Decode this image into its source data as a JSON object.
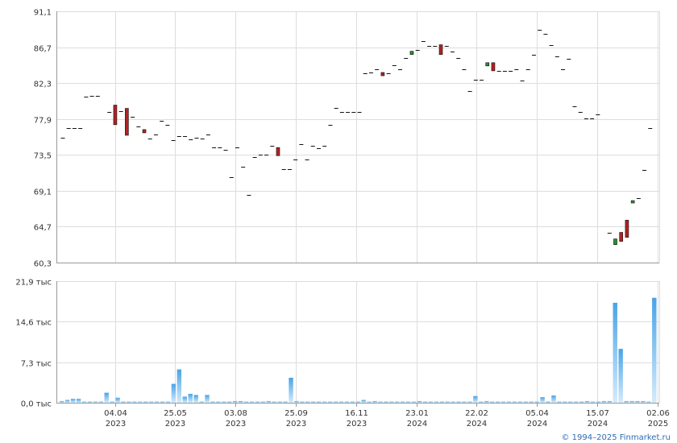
{
  "credit": "© 1994–2025 Finmarket.ru",
  "chart_data": [
    {
      "type": "candlestick",
      "y_ticks": [
        "91,1",
        "86,7",
        "82,3",
        "77,9",
        "73,5",
        "69,1",
        "64,7",
        "60,3"
      ],
      "y_tick_values": [
        91.1,
        86.7,
        82.3,
        77.9,
        73.5,
        69.1,
        64.7,
        60.3
      ],
      "ylim": [
        60.3,
        91.1
      ],
      "grid": true,
      "candles": [
        {
          "i": 0,
          "o": 75.6,
          "c": 75.6
        },
        {
          "i": 1,
          "o": 76.8,
          "c": 76.8
        },
        {
          "i": 2,
          "o": 76.8,
          "c": 76.8
        },
        {
          "i": 3,
          "o": 76.8,
          "c": 76.8
        },
        {
          "i": 4,
          "o": 80.6,
          "c": 80.6
        },
        {
          "i": 5,
          "o": 80.7,
          "c": 80.7
        },
        {
          "i": 6,
          "o": 80.7,
          "c": 80.7
        },
        {
          "i": 8,
          "o": 78.8,
          "c": 78.8
        },
        {
          "i": 9,
          "o": 79.6,
          "c": 77.2
        },
        {
          "i": 10,
          "o": 78.9,
          "c": 78.9
        },
        {
          "i": 11,
          "o": 79.2,
          "c": 75.9
        },
        {
          "i": 12,
          "o": 78.2,
          "c": 78.2
        },
        {
          "i": 13,
          "o": 77.0,
          "c": 77.0
        },
        {
          "i": 14,
          "o": 76.6,
          "c": 76.2
        },
        {
          "i": 15,
          "o": 75.5,
          "c": 75.5
        },
        {
          "i": 16,
          "o": 76.0,
          "c": 76.0
        },
        {
          "i": 17,
          "o": 77.7,
          "c": 77.7
        },
        {
          "i": 18,
          "o": 77.2,
          "c": 77.2
        },
        {
          "i": 19,
          "o": 75.3,
          "c": 75.3
        },
        {
          "i": 20,
          "o": 75.8,
          "c": 75.8
        },
        {
          "i": 21,
          "o": 75.8,
          "c": 75.8
        },
        {
          "i": 22,
          "o": 75.4,
          "c": 75.4
        },
        {
          "i": 23,
          "o": 75.6,
          "c": 75.6
        },
        {
          "i": 24,
          "o": 75.5,
          "c": 75.5
        },
        {
          "i": 25,
          "o": 76.0,
          "c": 76.0
        },
        {
          "i": 26,
          "o": 74.4,
          "c": 74.4
        },
        {
          "i": 27,
          "o": 74.4,
          "c": 74.4
        },
        {
          "i": 28,
          "o": 74.1,
          "c": 74.1
        },
        {
          "i": 29,
          "o": 70.8,
          "c": 70.8
        },
        {
          "i": 30,
          "o": 74.4,
          "c": 74.4
        },
        {
          "i": 31,
          "o": 72.0,
          "c": 72.0
        },
        {
          "i": 32,
          "o": 68.6,
          "c": 68.6
        },
        {
          "i": 33,
          "o": 73.2,
          "c": 73.2
        },
        {
          "i": 34,
          "o": 73.5,
          "c": 73.5
        },
        {
          "i": 35,
          "o": 73.5,
          "c": 73.5
        },
        {
          "i": 36,
          "o": 74.6,
          "c": 74.6
        },
        {
          "i": 37,
          "o": 74.4,
          "c": 73.4
        },
        {
          "i": 38,
          "o": 71.8,
          "c": 71.8
        },
        {
          "i": 39,
          "o": 71.8,
          "c": 71.8
        },
        {
          "i": 40,
          "o": 72.9,
          "c": 72.9
        },
        {
          "i": 41,
          "o": 74.8,
          "c": 74.8
        },
        {
          "i": 42,
          "o": 72.9,
          "c": 72.9
        },
        {
          "i": 43,
          "o": 74.6,
          "c": 74.6
        },
        {
          "i": 44,
          "o": 74.3,
          "c": 74.3
        },
        {
          "i": 45,
          "o": 74.6,
          "c": 74.6
        },
        {
          "i": 46,
          "o": 77.2,
          "c": 77.2
        },
        {
          "i": 47,
          "o": 79.3,
          "c": 79.3
        },
        {
          "i": 48,
          "o": 78.8,
          "c": 78.8
        },
        {
          "i": 49,
          "o": 78.8,
          "c": 78.8
        },
        {
          "i": 50,
          "o": 78.8,
          "c": 78.8
        },
        {
          "i": 51,
          "o": 78.8,
          "c": 78.8
        },
        {
          "i": 52,
          "o": 83.5,
          "c": 83.5
        },
        {
          "i": 53,
          "o": 83.6,
          "c": 83.6
        },
        {
          "i": 54,
          "o": 84.0,
          "c": 84.0
        },
        {
          "i": 55,
          "o": 83.6,
          "c": 83.2
        },
        {
          "i": 56,
          "o": 83.5,
          "c": 83.5
        },
        {
          "i": 57,
          "o": 84.5,
          "c": 84.5
        },
        {
          "i": 58,
          "o": 84.0,
          "c": 84.0
        },
        {
          "i": 59,
          "o": 85.4,
          "c": 85.4
        },
        {
          "i": 60,
          "o": 85.8,
          "c": 86.2
        },
        {
          "i": 61,
          "o": 86.4,
          "c": 86.4
        },
        {
          "i": 62,
          "o": 87.4,
          "c": 87.4
        },
        {
          "i": 63,
          "o": 86.9,
          "c": 86.9
        },
        {
          "i": 64,
          "o": 86.9,
          "c": 86.9
        },
        {
          "i": 65,
          "o": 87.0,
          "c": 85.8
        },
        {
          "i": 66,
          "o": 86.9,
          "c": 86.9
        },
        {
          "i": 67,
          "o": 86.2,
          "c": 86.2
        },
        {
          "i": 68,
          "o": 85.4,
          "c": 85.4
        },
        {
          "i": 69,
          "o": 84.0,
          "c": 84.0
        },
        {
          "i": 70,
          "o": 81.3,
          "c": 81.3
        },
        {
          "i": 71,
          "o": 82.7,
          "c": 82.7
        },
        {
          "i": 72,
          "o": 82.7,
          "c": 82.7
        },
        {
          "i": 73,
          "o": 84.4,
          "c": 84.8
        },
        {
          "i": 74,
          "o": 84.8,
          "c": 83.8
        },
        {
          "i": 75,
          "o": 83.8,
          "c": 83.8
        },
        {
          "i": 76,
          "o": 83.8,
          "c": 83.8
        },
        {
          "i": 77,
          "o": 83.8,
          "c": 83.8
        },
        {
          "i": 78,
          "o": 84.0,
          "c": 84.0
        },
        {
          "i": 79,
          "o": 82.6,
          "c": 82.6
        },
        {
          "i": 80,
          "o": 84.0,
          "c": 84.0
        },
        {
          "i": 81,
          "o": 85.8,
          "c": 85.8
        },
        {
          "i": 82,
          "o": 88.8,
          "c": 88.8
        },
        {
          "i": 83,
          "o": 88.3,
          "c": 88.3
        },
        {
          "i": 84,
          "o": 87.0,
          "c": 87.0
        },
        {
          "i": 85,
          "o": 85.6,
          "c": 85.6
        },
        {
          "i": 86,
          "o": 84.0,
          "c": 84.0
        },
        {
          "i": 87,
          "o": 85.3,
          "c": 85.3
        },
        {
          "i": 88,
          "o": 79.5,
          "c": 79.5
        },
        {
          "i": 89,
          "o": 78.8,
          "c": 78.8
        },
        {
          "i": 90,
          "o": 78.0,
          "c": 78.0
        },
        {
          "i": 91,
          "o": 78.0,
          "c": 78.0
        },
        {
          "i": 92,
          "o": 78.5,
          "c": 78.5
        },
        {
          "i": 94,
          "o": 64.0,
          "c": 64.0
        },
        {
          "i": 95,
          "o": 62.5,
          "c": 63.2
        },
        {
          "i": 96,
          "o": 64.0,
          "c": 62.9
        },
        {
          "i": 97,
          "o": 65.5,
          "c": 63.4
        },
        {
          "i": 98,
          "o": 67.6,
          "c": 67.9
        },
        {
          "i": 99,
          "o": 68.2,
          "c": 68.2
        },
        {
          "i": 100,
          "o": 71.7,
          "c": 71.7
        },
        {
          "i": 101,
          "o": 76.8,
          "c": 76.8
        }
      ]
    },
    {
      "type": "bar",
      "y_ticks": [
        "21,9 тыс",
        "14,6 тыс",
        "7,3 тыс",
        "0,0 тыс"
      ],
      "y_tick_values": [
        21.9,
        14.6,
        7.3,
        0.0
      ],
      "ylim": [
        0,
        21.9
      ],
      "grid": true,
      "color": "#5aaee8",
      "values": [
        0.3,
        0.5,
        0.7,
        0.7,
        0.2,
        0.2,
        0.2,
        0.2,
        1.8,
        0.2,
        0.9,
        0.2,
        0.2,
        0.2,
        0.2,
        0.2,
        0.2,
        0.2,
        0.2,
        0.2,
        3.4,
        6.0,
        1.1,
        1.6,
        1.4,
        0.2,
        1.4,
        0.2,
        0.2,
        0.2,
        0.2,
        0.3,
        0.3,
        0.2,
        0.2,
        0.2,
        0.2,
        0.3,
        0.2,
        0.2,
        0.2,
        4.5,
        0.3,
        0.2,
        0.2,
        0.2,
        0.2,
        0.2,
        0.2,
        0.2,
        0.2,
        0.2,
        0.2,
        0.2,
        0.5,
        0.2,
        0.3,
        0.2,
        0.2,
        0.2,
        0.2,
        0.2,
        0.2,
        0.2,
        0.3,
        0.2,
        0.2,
        0.2,
        0.2,
        0.2,
        0.2,
        0.2,
        0.2,
        0.2,
        1.2,
        0.2,
        0.3,
        0.2,
        0.2,
        0.2,
        0.2,
        0.2,
        0.2,
        0.2,
        0.2,
        0.2,
        1.0,
        0.2,
        1.3,
        0.2,
        0.2,
        0.2,
        0.2,
        0.2,
        0.3,
        0.2,
        0.2,
        0.3,
        0.3,
        18.0,
        9.7,
        0.3,
        0.3,
        0.3,
        0.3,
        0.2,
        18.9
      ]
    }
  ],
  "x_axis": {
    "ticks": [
      {
        "date": "04.04",
        "year": "2023",
        "frac": 0.097
      },
      {
        "date": "25.05",
        "year": "2023",
        "frac": 0.197
      },
      {
        "date": "03.08",
        "year": "2023",
        "frac": 0.297
      },
      {
        "date": "25.09",
        "year": "2023",
        "frac": 0.397
      },
      {
        "date": "16.11",
        "year": "2023",
        "frac": 0.497
      },
      {
        "date": "23.01",
        "year": "2024",
        "frac": 0.597
      },
      {
        "date": "22.02",
        "year": "2024",
        "frac": 0.697
      },
      {
        "date": "05.04",
        "year": "2024",
        "frac": 0.797
      },
      {
        "date": "15.07",
        "year": "2024",
        "frac": 0.897
      },
      {
        "date": "02.06",
        "year": "2025",
        "frac": 0.997
      }
    ]
  },
  "colors": {
    "up": "#2e8b2e",
    "down": "#b22222",
    "grid": "#dddddd",
    "axis": "#999999",
    "text": "#333333",
    "bar_top": "#4aa3e6",
    "bar_bottom": "#cfe8fa",
    "credit": "#2a6db5"
  }
}
